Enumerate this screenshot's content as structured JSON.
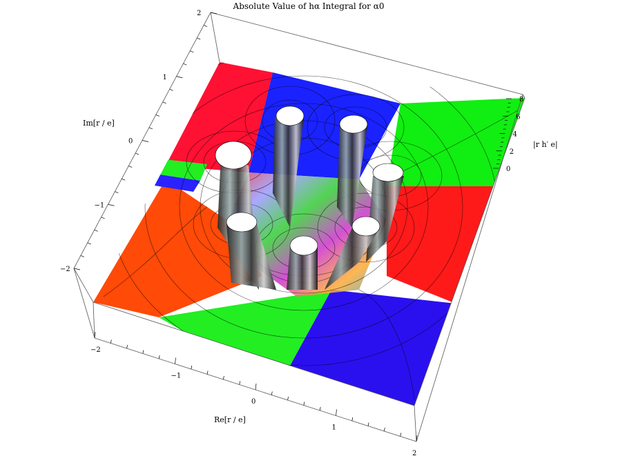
{
  "chart_data": {
    "type": "surface",
    "title": "Absolute Value of hα Integral for α0",
    "xlabel": "Re[r / e]",
    "ylabel": "Im[r / e]",
    "zlabel": "|r h′ e|",
    "xlim": [
      -2,
      2
    ],
    "ylim": [
      -2,
      2
    ],
    "zlim": [
      0,
      8
    ],
    "x_ticks": [
      "−2",
      "−1",
      "0",
      "1",
      "2"
    ],
    "y_ticks": [
      "−2",
      "−1",
      "0",
      "1",
      "2"
    ],
    "z_ticks": [
      "0",
      "2",
      "4",
      "6",
      "8"
    ],
    "coloring": "phase (hue = arg)",
    "contour_lines": true,
    "num_poles": 7,
    "poles": [
      {
        "re": -0.6,
        "im": 0.9
      },
      {
        "re": 0.3,
        "im": 1.2
      },
      {
        "re": 1.0,
        "im": 0.8
      },
      {
        "re": -1.2,
        "im": 0.15
      },
      {
        "re": 1.2,
        "im": -0.2
      },
      {
        "re": -0.7,
        "im": -0.9
      },
      {
        "re": 0.4,
        "im": -1.1
      }
    ],
    "phase_colors": [
      "#ff0000",
      "#ff0044",
      "#1a1aff",
      "#00ee00",
      "#22dd22",
      "#ff2a00",
      "#ff4400"
    ],
    "box": "shown",
    "view": "oblique top"
  }
}
